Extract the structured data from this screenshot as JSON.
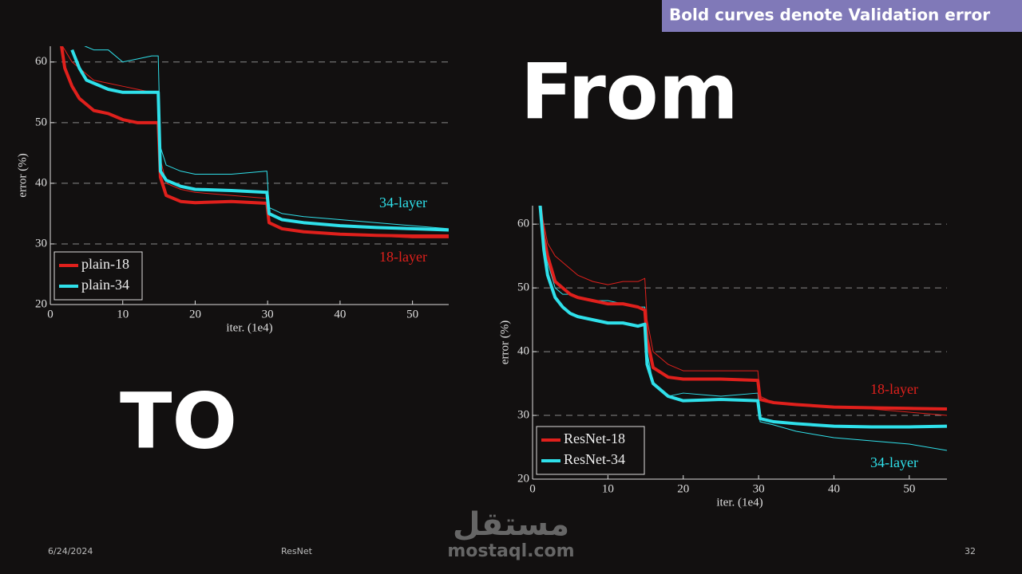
{
  "banner": "Bold curves denote Validation error",
  "headline_from": "From",
  "headline_to": "TO",
  "footer": {
    "date": "6/24/2024",
    "topic": "ResNet",
    "page": "32"
  },
  "watermark": {
    "arabic": "مستقل",
    "latin": "mostaql.com"
  },
  "chart_data": [
    {
      "type": "line",
      "xlabel": "iter. (1e4)",
      "ylabel": "error (%)",
      "xlim": [
        0,
        55
      ],
      "ylim": [
        20,
        62.6
      ],
      "xticks": [
        0,
        10,
        20,
        30,
        40,
        50
      ],
      "yticks": [
        20,
        30,
        40,
        50,
        60
      ],
      "grid": true,
      "legend": "lower left",
      "annotations": [
        "34-layer",
        "18-layer"
      ],
      "x": [
        1.5,
        2,
        3,
        4,
        5,
        6,
        8,
        10,
        12,
        14,
        14.9,
        15.2,
        16,
        18,
        20,
        25,
        29.9,
        30.2,
        32,
        35,
        40,
        45,
        50,
        55
      ],
      "series": [
        {
          "color": "#e0201c",
          "linewidth": 1,
          "values": [
            63,
            62,
            60,
            59,
            58,
            57,
            56.5,
            56,
            55.5,
            55,
            55,
            44,
            40,
            39,
            38.5,
            38,
            37.5,
            33.5,
            32.5,
            32,
            31.5,
            31.3,
            31,
            31
          ]
        },
        {
          "color": "#2fe0ea",
          "linewidth": 1,
          "values": [
            null,
            null,
            63,
            63,
            62.5,
            62,
            62,
            60,
            60.5,
            61,
            61,
            46,
            43,
            42,
            41.5,
            41.5,
            42,
            36,
            35,
            34.5,
            34,
            33.5,
            33,
            32.5
          ]
        },
        {
          "name": "plain-18",
          "color": "#e0201c",
          "linewidth": 4,
          "values": [
            63,
            59,
            56,
            54,
            53,
            52,
            51.5,
            50.5,
            50,
            50,
            50,
            41,
            38,
            37,
            36.8,
            37,
            36.7,
            33.5,
            32.5,
            32,
            31.6,
            31.4,
            31.3,
            31.3
          ]
        },
        {
          "name": "plain-34",
          "color": "#2fe0ea",
          "linewidth": 4,
          "values": [
            null,
            null,
            62,
            59,
            57,
            56.5,
            55.5,
            55,
            55,
            55,
            55,
            42,
            40.5,
            39.5,
            39,
            38.8,
            38.5,
            35,
            34,
            33.5,
            33,
            32.7,
            32.5,
            32.3
          ]
        }
      ]
    },
    {
      "type": "line",
      "xlabel": "iter. (1e4)",
      "ylabel": "error (%)",
      "xlim": [
        0,
        55
      ],
      "ylim": [
        20,
        62.9
      ],
      "xticks": [
        0,
        10,
        20,
        30,
        40,
        50
      ],
      "yticks": [
        20,
        30,
        40,
        50,
        60
      ],
      "grid": true,
      "legend": "lower left",
      "annotations": [
        "18-layer",
        "34-layer"
      ],
      "x": [
        1,
        1.5,
        2,
        3,
        4,
        5,
        6,
        8,
        10,
        12,
        14,
        14.9,
        15.2,
        16,
        18,
        20,
        25,
        29.9,
        30.2,
        32,
        35,
        40,
        45,
        50,
        55
      ],
      "series": [
        {
          "color": "#e0201c",
          "linewidth": 1,
          "values": [
            63,
            60,
            57,
            55,
            54,
            53,
            52,
            51,
            50.5,
            51,
            51,
            51.5,
            45,
            40,
            38,
            37,
            37,
            37,
            33,
            32,
            31.7,
            31.3,
            31,
            30.5,
            30
          ]
        },
        {
          "color": "#2fe0ea",
          "linewidth": 1,
          "values": [
            63,
            58,
            54,
            50,
            49,
            49,
            48.5,
            48,
            48,
            47.5,
            47,
            47,
            40,
            35,
            33,
            33.5,
            33,
            33.5,
            29,
            28.5,
            27.5,
            26.5,
            26,
            25.5,
            24.5
          ]
        },
        {
          "name": "ResNet-18",
          "color": "#e0201c",
          "linewidth": 4,
          "values": [
            63,
            58,
            55,
            51,
            50,
            49,
            48.5,
            48,
            47.5,
            47.5,
            47,
            46.5,
            42,
            37.5,
            36,
            35.7,
            35.7,
            35.5,
            32.5,
            32,
            31.7,
            31.3,
            31.2,
            31.1,
            31
          ]
        },
        {
          "name": "ResNet-34",
          "color": "#2fe0ea",
          "linewidth": 4,
          "values": [
            63,
            56,
            52,
            48.5,
            47,
            46,
            45.5,
            45,
            44.5,
            44.5,
            44,
            44.3,
            38,
            35,
            33,
            32.3,
            32.5,
            32.3,
            29.5,
            29,
            28.7,
            28.3,
            28.2,
            28.2,
            28.3
          ]
        }
      ]
    }
  ]
}
